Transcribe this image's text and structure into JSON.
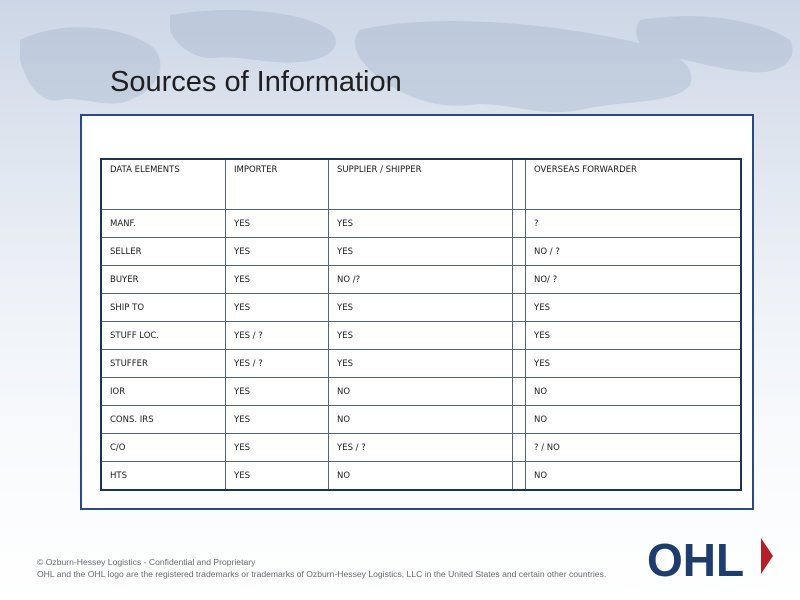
{
  "title": "Sources of Information",
  "table": {
    "headers": [
      "DATA ELEMENTS",
      "IMPORTER",
      "SUPPLIER / SHIPPER",
      "",
      "OVERSEAS FORWARDER"
    ],
    "rows": [
      [
        "MANF.",
        "YES",
        "YES",
        "",
        "?"
      ],
      [
        "SELLER",
        "YES",
        "YES",
        "",
        "NO / ?"
      ],
      [
        "BUYER",
        "YES",
        "NO /?",
        "",
        "NO/ ?"
      ],
      [
        "SHIP TO",
        "YES",
        "YES",
        "",
        "YES"
      ],
      [
        "STUFF LOC.",
        "YES / ?",
        "YES",
        "",
        "YES"
      ],
      [
        "STUFFER",
        "YES / ?",
        "YES",
        "",
        "YES"
      ],
      [
        "IOR",
        "YES",
        "NO",
        "",
        "NO"
      ],
      [
        "CONS. IRS",
        "YES",
        "NO",
        "",
        "NO"
      ],
      [
        "C/O",
        "YES",
        "YES / ?",
        "",
        "? / NO"
      ],
      [
        "HTS",
        "YES",
        "NO",
        "",
        "NO"
      ]
    ]
  },
  "footer": {
    "line1": "© Ozburn-Hessey Logistics - Confidential and Proprietary",
    "line2": "OHL and the OHL logo are the registered trademarks or trademarks of Ozburn-Hessey Logistics, LLC in the United States and certain other countries."
  },
  "logo": {
    "text": "OHL",
    "color": "#1e3c6e",
    "accent": "#b3202a"
  },
  "colors": {
    "panel_border": "#2c4a7a",
    "table_border": "#1e3457"
  }
}
